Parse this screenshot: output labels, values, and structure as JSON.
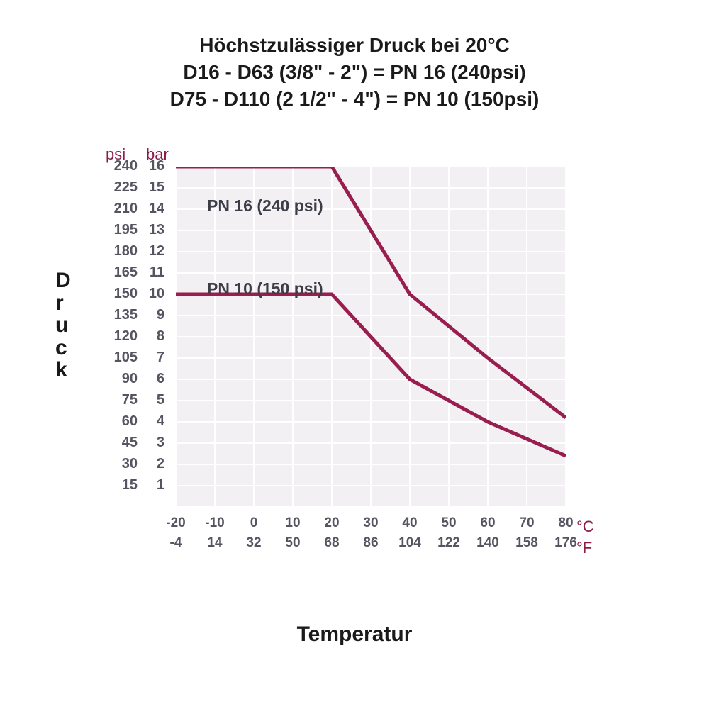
{
  "title": {
    "line1": "Höchstzulässiger Druck bei 20°C",
    "line2": "D16 - D63 (3/8\" - 2\") = PN 16 (240psi)",
    "line3": "D75 - D110 (2 1/2\" - 4\") = PN 10 (150psi)"
  },
  "axis": {
    "ylabel": "Druck",
    "xlabel": "Temperatur",
    "psi_header": "psi",
    "bar_header": "bar",
    "c_unit": "°C",
    "f_unit": "°F"
  },
  "chart": {
    "type": "line",
    "line_color": "#9a1d4f",
    "line_width": 5,
    "background_color": "#f2f0f3",
    "grid_color": "#ffffff",
    "x_domain_bar": [
      -20,
      80
    ],
    "y_domain_bar": [
      0,
      16
    ],
    "y_ticks": [
      {
        "psi": "240",
        "bar": "16"
      },
      {
        "psi": "225",
        "bar": "15"
      },
      {
        "psi": "210",
        "bar": "14"
      },
      {
        "psi": "195",
        "bar": "13"
      },
      {
        "psi": "180",
        "bar": "12"
      },
      {
        "psi": "165",
        "bar": "11"
      },
      {
        "psi": "150",
        "bar": "10"
      },
      {
        "psi": "135",
        "bar": "9"
      },
      {
        "psi": "120",
        "bar": "8"
      },
      {
        "psi": "105",
        "bar": "7"
      },
      {
        "psi": "90",
        "bar": "6"
      },
      {
        "psi": "75",
        "bar": "5"
      },
      {
        "psi": "60",
        "bar": "4"
      },
      {
        "psi": "45",
        "bar": "3"
      },
      {
        "psi": "30",
        "bar": "2"
      },
      {
        "psi": "15",
        "bar": "1"
      }
    ],
    "x_ticks": [
      {
        "c": "-20",
        "f": "-4"
      },
      {
        "c": "-10",
        "f": "14"
      },
      {
        "c": "0",
        "f": "32"
      },
      {
        "c": "10",
        "f": "50"
      },
      {
        "c": "20",
        "f": "68"
      },
      {
        "c": "30",
        "f": "86"
      },
      {
        "c": "40",
        "f": "104"
      },
      {
        "c": "50",
        "f": "122"
      },
      {
        "c": "60",
        "f": "140"
      },
      {
        "c": "70",
        "f": "158"
      },
      {
        "c": "80",
        "f": "176"
      }
    ],
    "series": [
      {
        "label": "PN 16 (240 psi)",
        "label_pos_bar": {
          "x": -12,
          "y": 14.6
        },
        "points_bar": [
          [
            -20,
            16
          ],
          [
            20,
            16
          ],
          [
            40,
            10
          ],
          [
            60,
            7
          ],
          [
            80,
            4.2
          ]
        ]
      },
      {
        "label": "PN 10 (150 psi)",
        "label_pos_bar": {
          "x": -12,
          "y": 10.7
        },
        "points_bar": [
          [
            -20,
            10
          ],
          [
            20,
            10
          ],
          [
            40,
            6
          ],
          [
            60,
            4
          ],
          [
            80,
            2.4
          ]
        ]
      }
    ]
  }
}
